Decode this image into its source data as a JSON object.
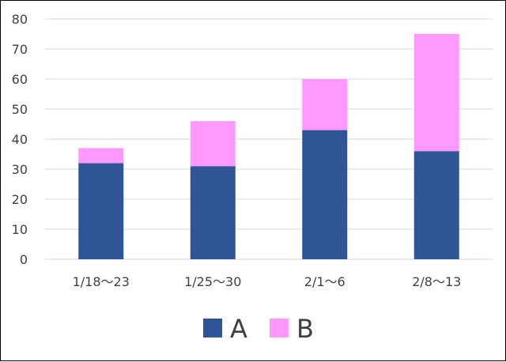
{
  "chart_data": {
    "type": "bar",
    "stacked": true,
    "categories": [
      "1/18～23",
      "1/25～30",
      "2/1～6",
      "2/8～13"
    ],
    "series": [
      {
        "name": "A",
        "values": [
          32,
          31,
          43,
          36
        ],
        "color": "#2f5597"
      },
      {
        "name": "B",
        "values": [
          5,
          15,
          17,
          39
        ],
        "color": "#ff99ff"
      }
    ],
    "ylim": [
      0,
      80
    ],
    "yticks": [
      0,
      10,
      20,
      30,
      40,
      50,
      60,
      70,
      80
    ],
    "grid": true,
    "gridColor": "#d9d9d9",
    "legend": "bottom"
  }
}
